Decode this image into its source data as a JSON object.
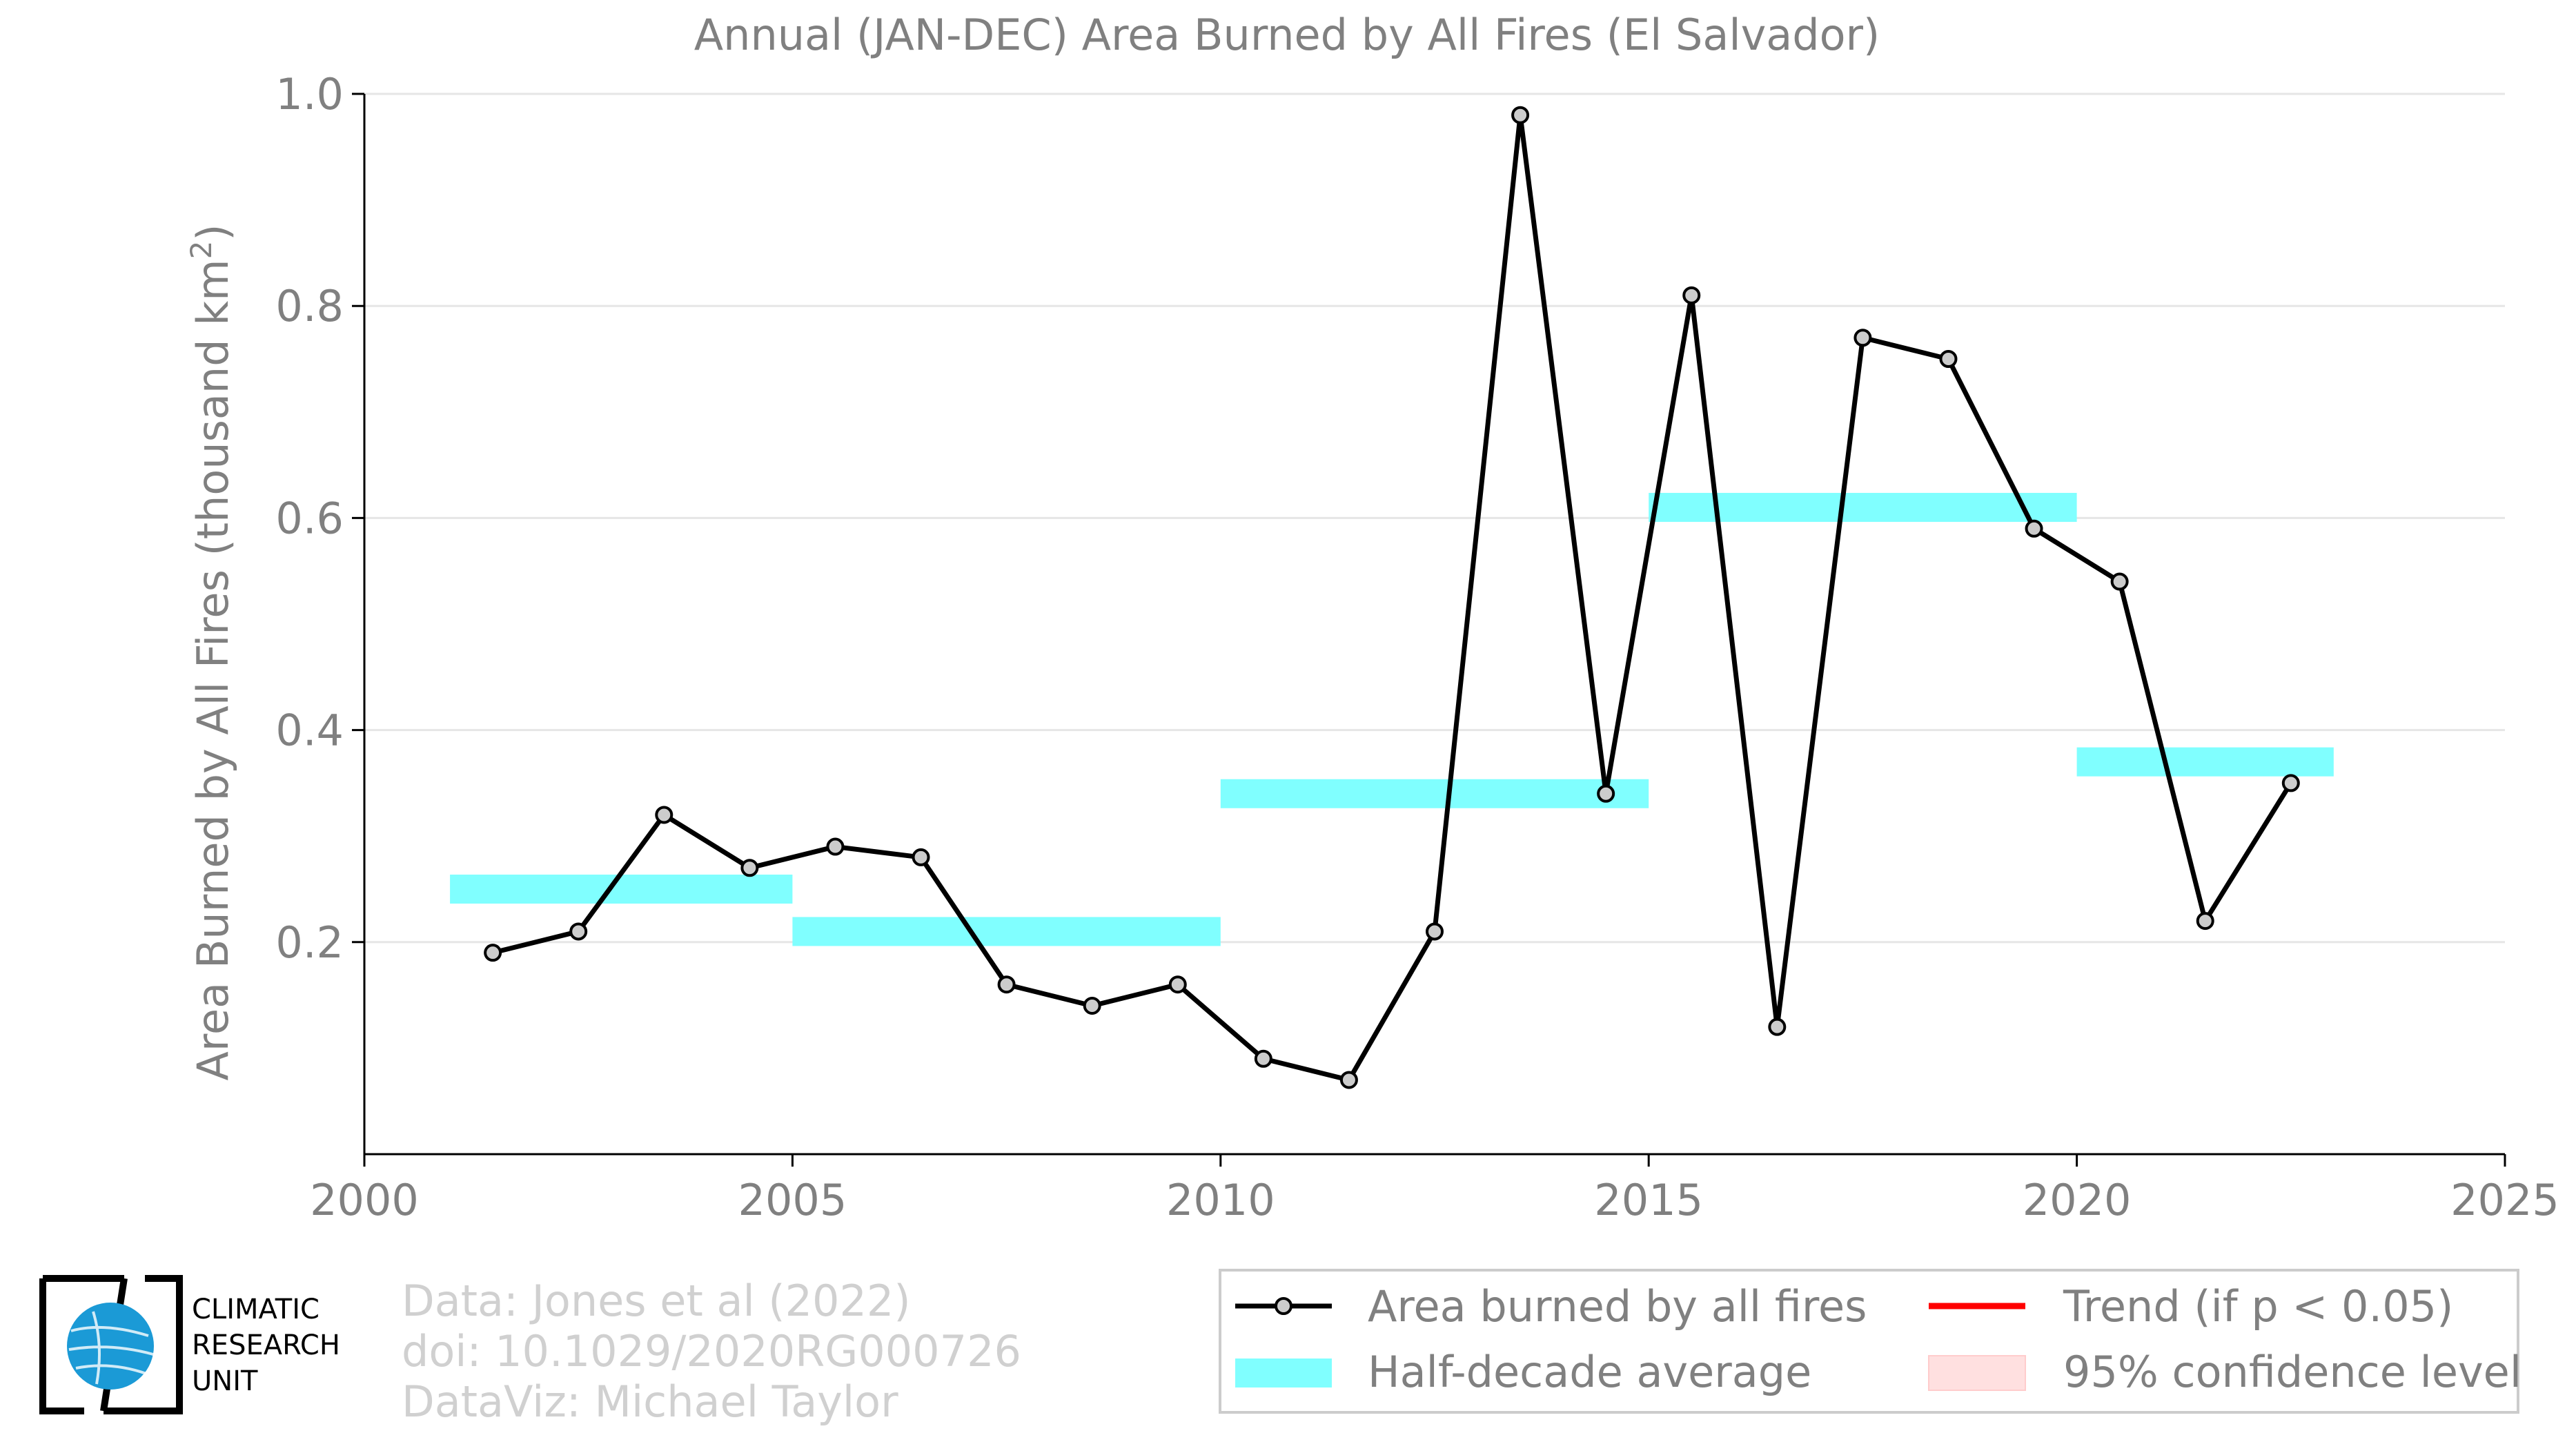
{
  "chart_data": {
    "type": "line",
    "title": "Annual (JAN-DEC) Area Burned by All Fires (El Salvador)",
    "ylabel_main": "Area Burned by All Fires (thousand km",
    "ylabel_sup": "2",
    "ylabel_end": ")",
    "xlim": [
      2000,
      2025
    ],
    "ylim": [
      0.0,
      1.0
    ],
    "xticks": [
      2000,
      2005,
      2010,
      2015,
      2020,
      2025
    ],
    "yticks": [
      0.2,
      0.4,
      0.6,
      0.8,
      1.0
    ],
    "ytick_labels": [
      "0.2",
      "0.4",
      "0.6",
      "0.8",
      "1.0"
    ],
    "grid": "horizontal",
    "series": [
      {
        "name": "Area burned by all fires",
        "x": [
          2001.5,
          2002.5,
          2003.5,
          2004.5,
          2005.5,
          2006.5,
          2007.5,
          2008.5,
          2009.5,
          2010.5,
          2011.5,
          2012.5,
          2013.5,
          2014.5,
          2015.5,
          2016.5,
          2017.5,
          2018.5,
          2019.5,
          2020.5,
          2021.5,
          2022.5
        ],
        "values": [
          0.19,
          0.21,
          0.32,
          0.27,
          0.29,
          0.28,
          0.16,
          0.14,
          0.16,
          0.09,
          0.07,
          0.21,
          0.98,
          0.34,
          0.81,
          0.12,
          0.77,
          0.75,
          0.59,
          0.54,
          0.22,
          0.35
        ],
        "color": "#000000",
        "marker_fill": "#cccccc"
      }
    ],
    "half_decade_average": {
      "name": "Half-decade average",
      "color": "#80ffff",
      "segments": [
        {
          "x0": 2001,
          "x1": 2005,
          "value": 0.25
        },
        {
          "x0": 2005,
          "x1": 2010,
          "value": 0.21
        },
        {
          "x0": 2010,
          "x1": 2015,
          "value": 0.34
        },
        {
          "x0": 2015,
          "x1": 2020,
          "value": 0.61
        },
        {
          "x0": 2020,
          "x1": 2023,
          "value": 0.37
        }
      ]
    },
    "legend": {
      "placement": "bottom-right",
      "items": [
        {
          "label": "Area burned by all fires",
          "kind": "line-marker",
          "color": "#000000"
        },
        {
          "label": "Trend (if p < 0.05)",
          "kind": "line",
          "color": "#ff0000"
        },
        {
          "label": "Half-decade average",
          "kind": "band",
          "color": "#80ffff"
        },
        {
          "label": "95% confidence level",
          "kind": "patch",
          "color": "#ffe0e0"
        }
      ]
    },
    "axis_color": "#808080"
  },
  "credits": {
    "line1": "Data: Jones et al (2022)",
    "line2": "doi: 10.1029/2020RG000726",
    "line3": "DataViz: Michael Taylor"
  },
  "logo": {
    "line1": "CLIMATIC",
    "line2": "RESEARCH",
    "line3": "UNIT",
    "globe_color": "#1b9ad6"
  }
}
